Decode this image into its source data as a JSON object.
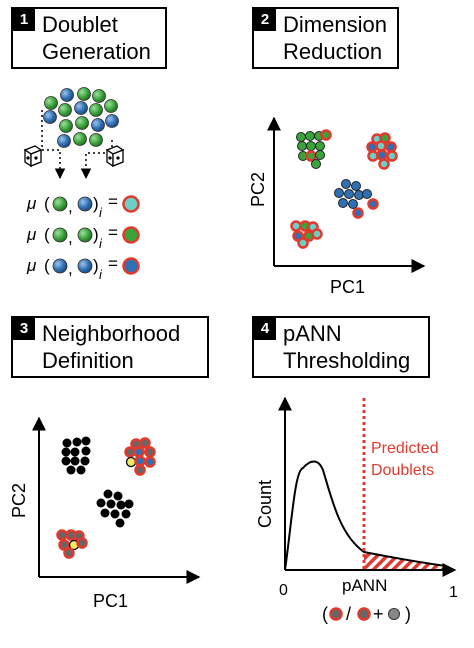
{
  "panels": [
    {
      "number": "1",
      "title": "Doublet\nGeneration"
    },
    {
      "number": "2",
      "title": "Dimension\nReduction"
    },
    {
      "number": "3",
      "title": "Neighborhood\nDefinition"
    },
    {
      "number": "4",
      "title": "pANN\nThresholding"
    }
  ],
  "panel1": {
    "mu_symbol": "μ",
    "index_i": "i",
    "equals": "="
  },
  "panel2": {
    "xlabel": "PC1",
    "ylabel": "PC2"
  },
  "panel3": {
    "xlabel": "PC1",
    "ylabel": "PC2"
  },
  "panel4": {
    "xlabel": "pANN",
    "ylabel": "Count",
    "x_min": "0",
    "x_max": "1",
    "threshold_label_line1": "Predicted",
    "threshold_label_line2": "Doublets",
    "formula_open": "(",
    "formula_slash": "/",
    "formula_plus": "+",
    "formula_close": ")"
  },
  "colors": {
    "green": "#3aa33a",
    "blue": "#2f6fb3",
    "red": "#e03a2f",
    "black": "#000000",
    "threshold": "#e03a2f",
    "teal": "#6ccfc6",
    "yellow": "#f3ea6a"
  }
}
